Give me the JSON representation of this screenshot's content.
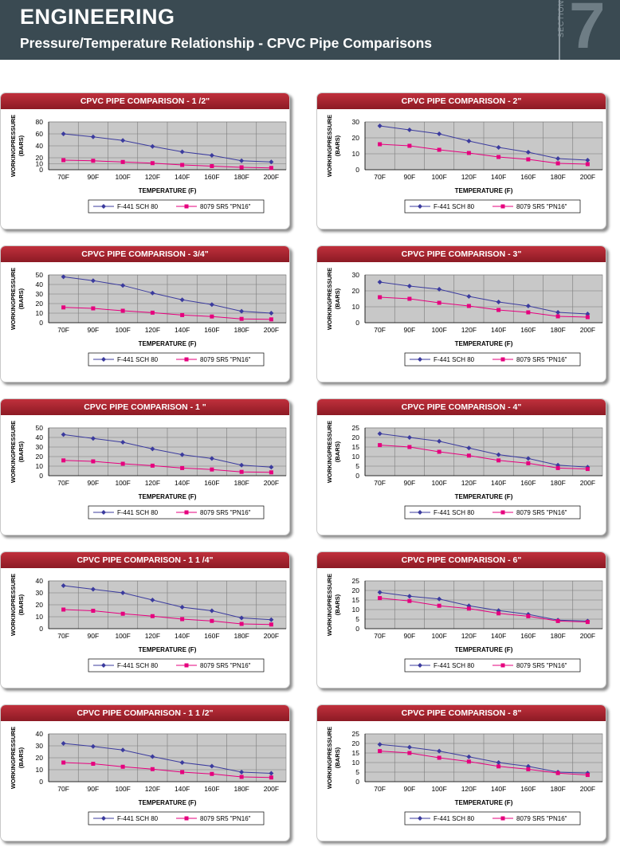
{
  "header": {
    "title": "ENGINEERING",
    "subtitle": "Pressure/Temperature Relationship - CPVC Pipe Comparisons",
    "section_label": "SECTION",
    "section_number": "7"
  },
  "colors": {
    "series1": "#3b3b9e",
    "series2": "#e6007e",
    "header_bg": "#3a4a52",
    "card_title": "#a9222e",
    "plot_bg": "#c8c8c8"
  },
  "chart_data": [
    {
      "type": "line",
      "title": "CPVC PIPE COMPARISON - 1 /2\"",
      "xlabel": "TEMPERATURE (F)",
      "ylabel": [
        "WORKINGPRESSURE",
        "(BARS)"
      ],
      "categories": [
        "70F",
        "90F",
        "100F",
        "120F",
        "140F",
        "160F",
        "180F",
        "200F"
      ],
      "ylim": [
        0,
        80
      ],
      "yticks": [
        0,
        10,
        20,
        40,
        60,
        80
      ],
      "series": [
        {
          "name": "F-441 SCH 80",
          "marker": "diamond",
          "values": [
            60,
            55,
            49,
            39,
            30,
            24,
            15,
            13
          ]
        },
        {
          "name": "8079 SR5 \"PN16\"",
          "marker": "square",
          "values": [
            16,
            15,
            13,
            11,
            8,
            6,
            4,
            3
          ]
        }
      ]
    },
    {
      "type": "line",
      "title": "CPVC PIPE COMPARISON - 2\"",
      "xlabel": "TEMPERATURE (F)",
      "ylabel": [
        "WORKINGPRESSURE",
        "(BARS)"
      ],
      "categories": [
        "70F",
        "90F",
        "100F",
        "120F",
        "140F",
        "160F",
        "180F",
        "200F"
      ],
      "ylim": [
        0,
        30
      ],
      "yticks": [
        0,
        10,
        20,
        30
      ],
      "series": [
        {
          "name": "F-441 SCH 80",
          "marker": "diamond",
          "values": [
            27.5,
            25,
            22.5,
            18,
            14,
            11,
            7,
            6
          ]
        },
        {
          "name": "8079 SR5 \"PN16\"",
          "marker": "square",
          "values": [
            16,
            15,
            12.5,
            10.5,
            8,
            6.5,
            4,
            3.5
          ]
        }
      ]
    },
    {
      "type": "line",
      "title": "CPVC PIPE COMPARISON - 3/4\"",
      "xlabel": "TEMPERATURE (F)",
      "ylabel": [
        "WORKINGPRESSURE",
        "(BARS)"
      ],
      "categories": [
        "70F",
        "90F",
        "100F",
        "120F",
        "140F",
        "160F",
        "180F",
        "200F"
      ],
      "ylim": [
        0,
        50
      ],
      "yticks": [
        0,
        10,
        20,
        30,
        40,
        50
      ],
      "series": [
        {
          "name": "F-441 SCH 80",
          "marker": "diamond",
          "values": [
            48,
            44,
            39,
            31,
            24,
            19,
            12,
            10
          ]
        },
        {
          "name": "8079 SR5 \"PN16\"",
          "marker": "square",
          "values": [
            16,
            15,
            12.5,
            10.5,
            8,
            6.5,
            4,
            3.5
          ]
        }
      ]
    },
    {
      "type": "line",
      "title": "CPVC PIPE COMPARISON - 3\"",
      "xlabel": "TEMPERATURE (F)",
      "ylabel": [
        "WORKINGPRESSURE",
        "(BARS)"
      ],
      "categories": [
        "70F",
        "90F",
        "100F",
        "120F",
        "140F",
        "160F",
        "180F",
        "200F"
      ],
      "ylim": [
        0,
        30
      ],
      "yticks": [
        0,
        10,
        20,
        30
      ],
      "series": [
        {
          "name": "F-441 SCH 80",
          "marker": "diamond",
          "values": [
            25.5,
            23,
            21,
            16.5,
            13,
            10.5,
            6.5,
            5.5
          ]
        },
        {
          "name": "8079 SR5 \"PN16\"",
          "marker": "square",
          "values": [
            16,
            15,
            12.5,
            10.5,
            8,
            6.5,
            4,
            3.5
          ]
        }
      ]
    },
    {
      "type": "line",
      "title": "CPVC PIPE COMPARISON - 1 \"",
      "xlabel": "TEMPERATURE (F)",
      "ylabel": [
        "WORKINGPRESSURE",
        "(BARS)"
      ],
      "categories": [
        "70F",
        "90F",
        "100F",
        "120F",
        "140F",
        "160F",
        "180F",
        "200F"
      ],
      "ylim": [
        0,
        50
      ],
      "yticks": [
        0,
        10,
        20,
        30,
        40,
        50
      ],
      "series": [
        {
          "name": "F-441 SCH 80",
          "marker": "diamond",
          "values": [
            43,
            39,
            35,
            28,
            22,
            18,
            11,
            9
          ]
        },
        {
          "name": "8079 SR5 \"PN16\"",
          "marker": "square",
          "values": [
            16,
            15,
            12.5,
            10.5,
            8,
            6.5,
            4,
            3.5
          ]
        }
      ]
    },
    {
      "type": "line",
      "title": "CPVC PIPE COMPARISON - 4\"",
      "xlabel": "TEMPERATURE (F)",
      "ylabel": [
        "WORKINGPRESSURE",
        "(BARS)"
      ],
      "categories": [
        "70F",
        "90F",
        "100F",
        "120F",
        "140F",
        "160F",
        "180F",
        "200F"
      ],
      "ylim": [
        0,
        25
      ],
      "yticks": [
        0,
        5,
        10,
        15,
        20,
        25
      ],
      "series": [
        {
          "name": "F-441 SCH 80",
          "marker": "diamond",
          "values": [
            22,
            20,
            18,
            14.5,
            11,
            9,
            5.5,
            4.5
          ]
        },
        {
          "name": "8079 SR5 \"PN16\"",
          "marker": "square",
          "values": [
            16,
            15,
            12.5,
            10.5,
            8,
            6.5,
            4,
            3.5
          ]
        }
      ]
    },
    {
      "type": "line",
      "title": "CPVC PIPE COMPARISON - 1 1 /4\"",
      "xlabel": "TEMPERATURE (F)",
      "ylabel": [
        "WORKINGPRESSURE",
        "(BARS)"
      ],
      "categories": [
        "70F",
        "90F",
        "100F",
        "120F",
        "140F",
        "160F",
        "180F",
        "200F"
      ],
      "ylim": [
        0,
        40
      ],
      "yticks": [
        0,
        10,
        20,
        30,
        40
      ],
      "series": [
        {
          "name": "F-441 SCH 80",
          "marker": "diamond",
          "values": [
            36,
            33,
            30,
            24,
            18,
            15,
            9,
            7.5
          ]
        },
        {
          "name": "8079 SR5 \"PN16\"",
          "marker": "square",
          "values": [
            16,
            15,
            12.5,
            10.5,
            8,
            6.5,
            4,
            3.5
          ]
        }
      ]
    },
    {
      "type": "line",
      "title": "CPVC PIPE COMPARISON - 6\"",
      "xlabel": "TEMPERATURE (F)",
      "ylabel": [
        "WORKINGPRESSURE",
        "(BARS)"
      ],
      "categories": [
        "70F",
        "90F",
        "100F",
        "120F",
        "140F",
        "160F",
        "180F",
        "200F"
      ],
      "ylim": [
        0,
        25
      ],
      "yticks": [
        0,
        5,
        10,
        15,
        20,
        25
      ],
      "series": [
        {
          "name": "F-441 SCH 80",
          "marker": "diamond",
          "values": [
            19,
            17,
            15.5,
            12,
            9.5,
            7.5,
            4.5,
            4
          ]
        },
        {
          "name": "8079 SR5 \"PN16\"",
          "marker": "square",
          "values": [
            16,
            14.5,
            12,
            10.5,
            8,
            6.5,
            4,
            3.5
          ]
        }
      ]
    },
    {
      "type": "line",
      "title": "CPVC PIPE COMPARISON - 1  1 /2\"",
      "xlabel": "TEMPERATURE (F)",
      "ylabel": [
        "WORKINGPRESSURE",
        "(BARS)"
      ],
      "categories": [
        "70F",
        "90F",
        "100F",
        "120F",
        "140F",
        "160F",
        "180F",
        "200F"
      ],
      "ylim": [
        0,
        40
      ],
      "yticks": [
        0,
        10,
        20,
        30,
        40
      ],
      "series": [
        {
          "name": "F-441 SCH 80",
          "marker": "diamond",
          "values": [
            32,
            29.5,
            26.5,
            21,
            16,
            13,
            8,
            7
          ]
        },
        {
          "name": "8079 SR5 \"PN16\"",
          "marker": "square",
          "values": [
            16,
            15,
            12.5,
            10.5,
            8,
            6.5,
            4,
            3.5
          ]
        }
      ]
    },
    {
      "type": "line",
      "title": "CPVC PIPE COMPARISON - 8\"",
      "xlabel": "TEMPERATURE (F)",
      "ylabel": [
        "WORKINGPRESSURE",
        "(BARS)"
      ],
      "categories": [
        "70F",
        "90F",
        "100F",
        "120F",
        "140F",
        "160F",
        "180F",
        "200F"
      ],
      "ylim": [
        0,
        25
      ],
      "yticks": [
        0,
        5,
        10,
        15,
        20,
        25
      ],
      "series": [
        {
          "name": "F-441 SCH 80",
          "marker": "diamond",
          "values": [
            19.5,
            18,
            16,
            13,
            10,
            8,
            5,
            4.5
          ]
        },
        {
          "name": "8079 SR5 \"PN16\"",
          "marker": "square",
          "values": [
            16,
            15,
            12.5,
            10.5,
            8,
            6.5,
            4.5,
            3.5
          ]
        }
      ]
    }
  ]
}
